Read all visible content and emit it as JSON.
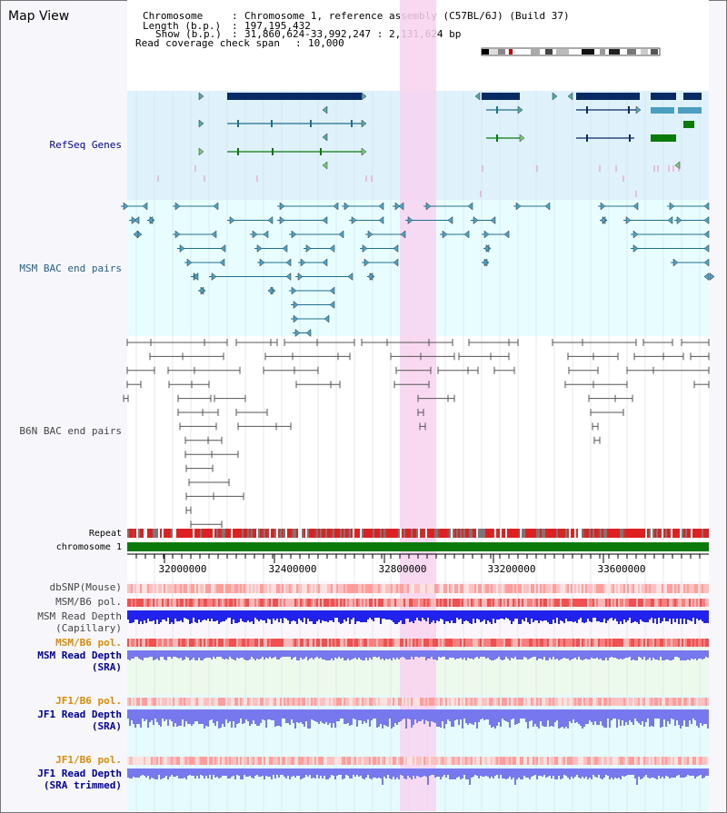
{
  "title": "Map View",
  "header": {
    "chromosome_key": "Chromosome",
    "chromosome_val": "Chromosome 1, reference assembly (C57BL/6J) (Build 37)",
    "length_key": "Length (b.p.)",
    "length_val": "197,195,432",
    "show_key": "Show (b.p.)",
    "show_val": "31,860,624-33,992,247 : 2,131,624 bp",
    "read_key": "Read coverage check span",
    "read_val": "10,000"
  },
  "tracks": {
    "refseq": "RefSeq Genes",
    "msm_bac": "MSM BAC end pairs",
    "b6n_bac": "B6N BAC end pairs",
    "repeat": "Repeat",
    "chromosome": "chromosome 1",
    "dbsnp": "dbSNP(Mouse)",
    "msm_b6_pol_1": "MSM/B6 pol.",
    "msm_read_depth_cap_1": "MSM Read Depth",
    "msm_read_depth_cap_2": "(Capillary)",
    "msm_b6_pol_2": "MSM/B6 pol.",
    "msm_read_depth_sra_1": "MSM Read Depth",
    "msm_read_depth_sra_2": "(SRA)",
    "jf1_b6_pol_1": "JF1/B6 pol.",
    "jf1_read_depth_sra_1": "JF1 Read Depth",
    "jf1_read_depth_sra_2": "(SRA)",
    "jf1_b6_pol_2": "JF1/B6 pol.",
    "jf1_read_depth_trim_1": "JF1 Read Depth",
    "jf1_read_depth_trim_2": "(SRA trimmed)"
  },
  "axis_ticks": [
    "32000000",
    "32400000",
    "32800000",
    "33200000",
    "33600000"
  ],
  "colors": {
    "refseq_bg": "#dff1fb",
    "msm_bg": "#e8fdfd",
    "highlight": "#f8d2f0",
    "gene_dark": "#0a2a66",
    "gene_teal": "#1f6f8f",
    "gene_green": "#0a7a0a",
    "msm_line": "#1f6f8f",
    "b6n_line": "#555555",
    "chromosome": "#0a7a0a",
    "repeat_red": "#e02020",
    "depth_blue": "#2222ee",
    "depth_light": "#7777ee",
    "label_blue": "#0000aa",
    "label_teal": "#1f5f8f",
    "label_orange": "#e08a00"
  }
}
